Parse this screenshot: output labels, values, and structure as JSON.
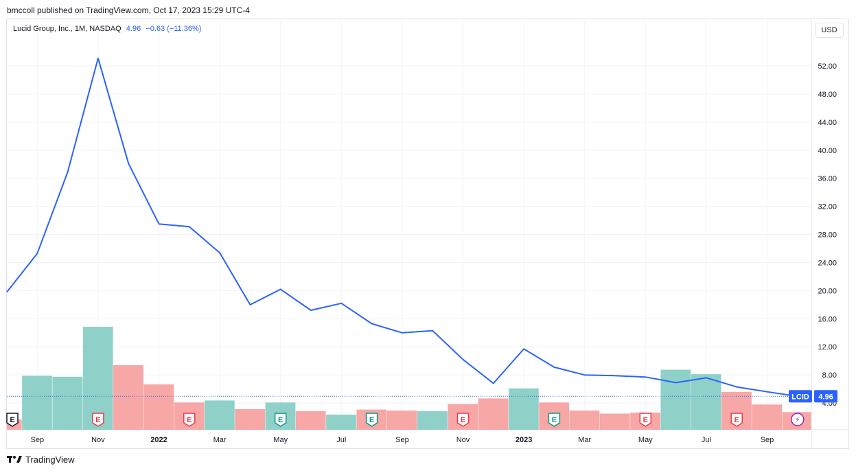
{
  "header": {
    "published": "bmccoll published on TradingView.com, Oct 17, 2023 15:29 UTC-4"
  },
  "legend": {
    "symbol": "Lucid Group, Inc., 1M, NASDAQ",
    "last": "4.96",
    "change": "−0.63 (−11.36%)"
  },
  "currency_button": "USD",
  "footer": {
    "brand": "TradingView"
  },
  "colors": {
    "line": "#2962ff",
    "vol_up": "#8fd1c8",
    "vol_down": "#f6a7a6",
    "label_bg": "#2962ff",
    "earn_down": "#f23645",
    "earn_up": "#089981",
    "dividend": "#9c27b0"
  },
  "chart_data": {
    "type": "line",
    "title": "Lucid Group, Inc., 1M, NASDAQ",
    "x": [
      "2021-08",
      "2021-09",
      "2021-10",
      "2021-11",
      "2021-12",
      "2022-01",
      "2022-02",
      "2022-03",
      "2022-04",
      "2022-05",
      "2022-06",
      "2022-07",
      "2022-08",
      "2022-09",
      "2022-10",
      "2022-11",
      "2022-12",
      "2023-01",
      "2023-02",
      "2023-03",
      "2023-04",
      "2023-05",
      "2023-06",
      "2023-07",
      "2023-08",
      "2023-09",
      "2023-10"
    ],
    "price": [
      19.8,
      25.3,
      36.9,
      53.1,
      38.1,
      29.5,
      29.1,
      25.4,
      18.0,
      20.2,
      17.2,
      18.2,
      15.3,
      14.0,
      14.3,
      10.2,
      6.8,
      11.7,
      9.1,
      8.0,
      7.9,
      7.7,
      6.9,
      7.6,
      6.3,
      5.6,
      4.96
    ],
    "volume_units": "relative",
    "volume": [
      2.0,
      10.7,
      10.5,
      20.4,
      12.8,
      9.0,
      5.4,
      5.8,
      4.1,
      5.4,
      3.7,
      3.0,
      4.0,
      3.8,
      3.7,
      5.1,
      6.2,
      8.2,
      5.4,
      3.8,
      3.2,
      3.4,
      11.9,
      11.0,
      7.5,
      5.0,
      3.5
    ],
    "volume_up": [
      false,
      true,
      true,
      true,
      false,
      false,
      false,
      true,
      false,
      true,
      false,
      true,
      false,
      false,
      true,
      false,
      false,
      true,
      false,
      false,
      false,
      false,
      true,
      true,
      false,
      false,
      false
    ],
    "events": [
      {
        "x": "2021-08",
        "kind": "earnings",
        "tone": "neutral",
        "glyph": "E"
      },
      {
        "x": "2021-11",
        "kind": "earnings",
        "tone": "down",
        "glyph": "E"
      },
      {
        "x": "2022-02",
        "kind": "earnings",
        "tone": "down",
        "glyph": "E"
      },
      {
        "x": "2022-05",
        "kind": "earnings",
        "tone": "up",
        "glyph": "E"
      },
      {
        "x": "2022-08",
        "kind": "earnings",
        "tone": "up",
        "glyph": "E"
      },
      {
        "x": "2022-11",
        "kind": "earnings",
        "tone": "down",
        "glyph": "E"
      },
      {
        "x": "2023-02",
        "kind": "earnings",
        "tone": "up",
        "glyph": "E"
      },
      {
        "x": "2023-05",
        "kind": "earnings",
        "tone": "down",
        "glyph": "E"
      },
      {
        "x": "2023-08",
        "kind": "earnings",
        "tone": "down",
        "glyph": "E"
      },
      {
        "x": "2023-10",
        "kind": "event",
        "tone": "purple",
        "glyph": "⚡"
      }
    ],
    "x_tick_labels": [
      {
        "x": "2021-09",
        "label": "Sep",
        "bold": false
      },
      {
        "x": "2021-11",
        "label": "Nov",
        "bold": false
      },
      {
        "x": "2022-01",
        "label": "2022",
        "bold": true
      },
      {
        "x": "2022-03",
        "label": "Mar",
        "bold": false
      },
      {
        "x": "2022-05",
        "label": "May",
        "bold": false
      },
      {
        "x": "2022-07",
        "label": "Jul",
        "bold": false
      },
      {
        "x": "2022-09",
        "label": "Sep",
        "bold": false
      },
      {
        "x": "2022-11",
        "label": "Nov",
        "bold": false
      },
      {
        "x": "2023-01",
        "label": "2023",
        "bold": true
      },
      {
        "x": "2023-03",
        "label": "Mar",
        "bold": false
      },
      {
        "x": "2023-05",
        "label": "May",
        "bold": false
      },
      {
        "x": "2023-07",
        "label": "Jul",
        "bold": false
      },
      {
        "x": "2023-09",
        "label": "Sep",
        "bold": false
      }
    ],
    "y_ticks": [
      {
        "value": 4,
        "label": "4.00"
      },
      {
        "value": 8,
        "label": "8.00"
      },
      {
        "value": 12,
        "label": "12.00"
      },
      {
        "value": 16,
        "label": "16.00"
      },
      {
        "value": 20,
        "label": "20.00"
      },
      {
        "value": 24,
        "label": "24.00"
      },
      {
        "value": 28,
        "label": "28.00"
      },
      {
        "value": 32,
        "label": "32.00"
      },
      {
        "value": 36,
        "label": "36.00"
      },
      {
        "value": 40,
        "label": "40.00"
      },
      {
        "value": 44,
        "label": "44.00"
      },
      {
        "value": 48,
        "label": "48.00"
      },
      {
        "value": 52,
        "label": "52.00"
      }
    ],
    "ylim": [
      0,
      56
    ],
    "grid": true,
    "last_price_label": {
      "symbol": "LCID",
      "value": "4.96"
    }
  }
}
